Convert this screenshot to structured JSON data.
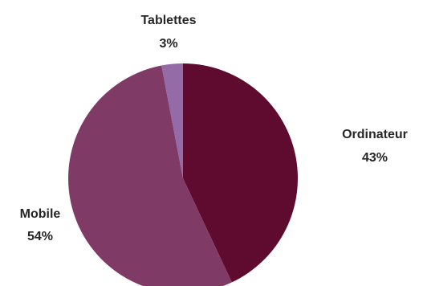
{
  "chart_data": {
    "type": "pie",
    "title": "",
    "slices": [
      {
        "name": "Ordinateur",
        "value": 43,
        "label": "43%",
        "color": "#5f0b30"
      },
      {
        "name": "Mobile",
        "value": 54,
        "label": "54%",
        "color": "#7f3a66"
      },
      {
        "name": "Tablettes",
        "value": 3,
        "label": "3%",
        "color": "#946ba7"
      }
    ],
    "start_angle_deg": 0,
    "direction": "clockwise",
    "legend": "none",
    "labels": "outside"
  }
}
